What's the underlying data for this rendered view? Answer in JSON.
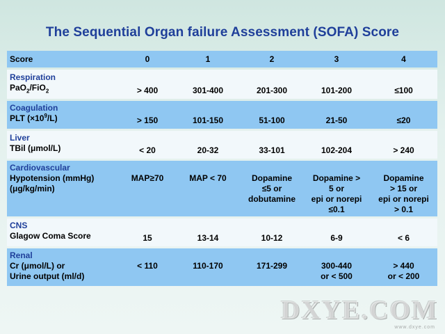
{
  "title": "The Sequential Organ failure Assessment (SOFA) Score",
  "header": [
    "Score",
    "0",
    "1",
    "2",
    "3",
    "4"
  ],
  "rows": [
    {
      "category": "Respiration",
      "param_main": "PaO",
      "param_sub1": "2",
      "param_mid": "/FiO",
      "param_sub2": "2",
      "values": [
        "> 400",
        "301-400",
        "201-300",
        "101-200",
        "≤100"
      ]
    },
    {
      "category": "Coagulation",
      "param_main": "PLT (×10",
      "param_sup": "9",
      "param_end": "/L)",
      "values": [
        "> 150",
        "101-150",
        "51-100",
        "21-50",
        "≤20"
      ]
    },
    {
      "category": "Liver",
      "param": "TBil (μmol/L)",
      "values": [
        "< 20",
        "20-32",
        "33-101",
        "102-204",
        "> 240"
      ]
    },
    {
      "category": "Cardiovascular",
      "param_line1": "Hypotension (mmHg)",
      "param_line2": "(μg/kg/min)",
      "values": [
        [
          "MAP≥70"
        ],
        [
          "MAP < 70"
        ],
        [
          "Dopamine",
          "≤5 or",
          "dobutamine"
        ],
        [
          "Dopamine  >",
          "5 or",
          "epi or norepi",
          "≤0.1"
        ],
        [
          "Dopamine",
          "> 15 or",
          "epi or norepi",
          "> 0.1"
        ]
      ]
    },
    {
      "category": "CNS",
      "param": "Glagow Coma Score",
      "values": [
        "15",
        "13-14",
        "10-12",
        "6-9",
        "< 6"
      ]
    },
    {
      "category": "Renal",
      "param_line1": "Cr (μmol/L)  or",
      "param_line2": "Urine output (ml/d)",
      "values": [
        [
          "< 110"
        ],
        [
          "110-170"
        ],
        [
          "171-299"
        ],
        [
          "300-440",
          "or  < 500"
        ],
        [
          "> 440",
          "or  < 200"
        ]
      ]
    }
  ],
  "watermark": {
    "text": "DXYE.COM",
    "sub": "www.dxye.com"
  }
}
